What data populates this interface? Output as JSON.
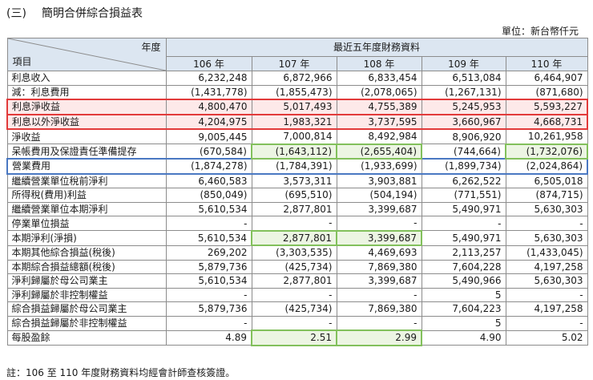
{
  "heading": {
    "number": "(三)",
    "title": "簡明合併綜合損益表"
  },
  "unit": "單位：新台幣仟元",
  "table": {
    "corner_top": "年度",
    "corner_bottom": "項目",
    "group_header": "最近五年度財務資料",
    "years": [
      "106 年",
      "107 年",
      "108 年",
      "109 年",
      "110 年"
    ],
    "rows": [
      {
        "label": "利息收入",
        "values": [
          "6,232,248",
          "6,872,966",
          "6,833,454",
          "6,513,084",
          "6,464,907"
        ]
      },
      {
        "label": "減：利息費用",
        "values": [
          "(1,431,778)",
          "(1,855,473)",
          "(2,078,065)",
          "(1,267,131)",
          "(871,680)"
        ]
      },
      {
        "label": "利息淨收益",
        "values": [
          "4,800,470",
          "5,017,493",
          "4,755,389",
          "5,245,953",
          "5,593,227"
        ]
      },
      {
        "label": "利息以外淨收益",
        "values": [
          "4,204,975",
          "1,983,321",
          "3,737,595",
          "3,660,967",
          "4,668,731"
        ]
      },
      {
        "label": "淨收益",
        "values": [
          "9,005,445",
          "7,000,814",
          "8,492,984",
          "8,906,920",
          "10,261,958"
        ]
      },
      {
        "label": "呆帳費用及保證責任準備提存",
        "values": [
          "(670,584)",
          "(1,643,112)",
          "(2,655,404)",
          "(744,664)",
          "(1,732,076)"
        ]
      },
      {
        "label": "營業費用",
        "values": [
          "(1,874,278)",
          "(1,784,391)",
          "(1,933,699)",
          "(1,899,734)",
          "(2,024,864)"
        ]
      },
      {
        "label": "繼續營業單位稅前淨利",
        "values": [
          "6,460,583",
          "3,573,311",
          "3,903,881",
          "6,262,522",
          "6,505,018"
        ]
      },
      {
        "label": "所得稅(費用)利益",
        "values": [
          "(850,049)",
          "(695,510)",
          "(504,194)",
          "(771,551)",
          "(874,715)"
        ]
      },
      {
        "label": "繼續營業單位本期淨利",
        "values": [
          "5,610,534",
          "2,877,801",
          "3,399,687",
          "5,490,971",
          "5,630,303"
        ]
      },
      {
        "label": "停業單位損益",
        "values": [
          "-",
          "-",
          "-",
          "-",
          "-"
        ]
      },
      {
        "label": "本期淨利(淨損)",
        "values": [
          "5,610,534",
          "2,877,801",
          "3,399,687",
          "5,490,971",
          "5,630,303"
        ]
      },
      {
        "label": "本期其他綜合損益(稅後)",
        "values": [
          "269,202",
          "(3,303,535)",
          "4,469,693",
          "2,113,257",
          "(1,433,045)"
        ]
      },
      {
        "label": "本期綜合損益總額(稅後)",
        "values": [
          "5,879,736",
          "(425,734)",
          "7,869,380",
          "7,604,228",
          "4,197,258"
        ]
      },
      {
        "label": "淨利歸屬於母公司業主",
        "values": [
          "5,610,534",
          "2,877,801",
          "3,399,687",
          "5,490,966",
          "5,630,303"
        ]
      },
      {
        "label": "淨利歸屬於非控制權益",
        "values": [
          "-",
          "-",
          "-",
          "5",
          "-"
        ]
      },
      {
        "label": "綜合損益歸屬於母公司業主",
        "values": [
          "5,879,736",
          "(425,734)",
          "7,869,380",
          "7,604,223",
          "4,197,258"
        ]
      },
      {
        "label": "綜合損益歸屬於非控制權益",
        "values": [
          "-",
          "-",
          "-",
          "5",
          "-"
        ]
      },
      {
        "label": "每股盈餘",
        "values": [
          "4.89",
          "2.51",
          "2.99",
          "4.90",
          "5.02"
        ]
      }
    ]
  },
  "highlights": {
    "red_rows": [
      2,
      3
    ],
    "blue_rows": [
      6
    ],
    "green_cells": [
      [
        5,
        1
      ],
      [
        5,
        2
      ],
      [
        5,
        4
      ],
      [
        11,
        1
      ],
      [
        11,
        2
      ],
      [
        18,
        1
      ],
      [
        18,
        2
      ]
    ],
    "colors": {
      "red": "#e23a3a",
      "red_fill": "#fde9e9",
      "blue": "#4a78c2",
      "green": "#82c05c",
      "green_fill": "#ecf5e3"
    }
  },
  "footnote": "註：106 至 110 年度財務資料均經會計師查核簽證。"
}
